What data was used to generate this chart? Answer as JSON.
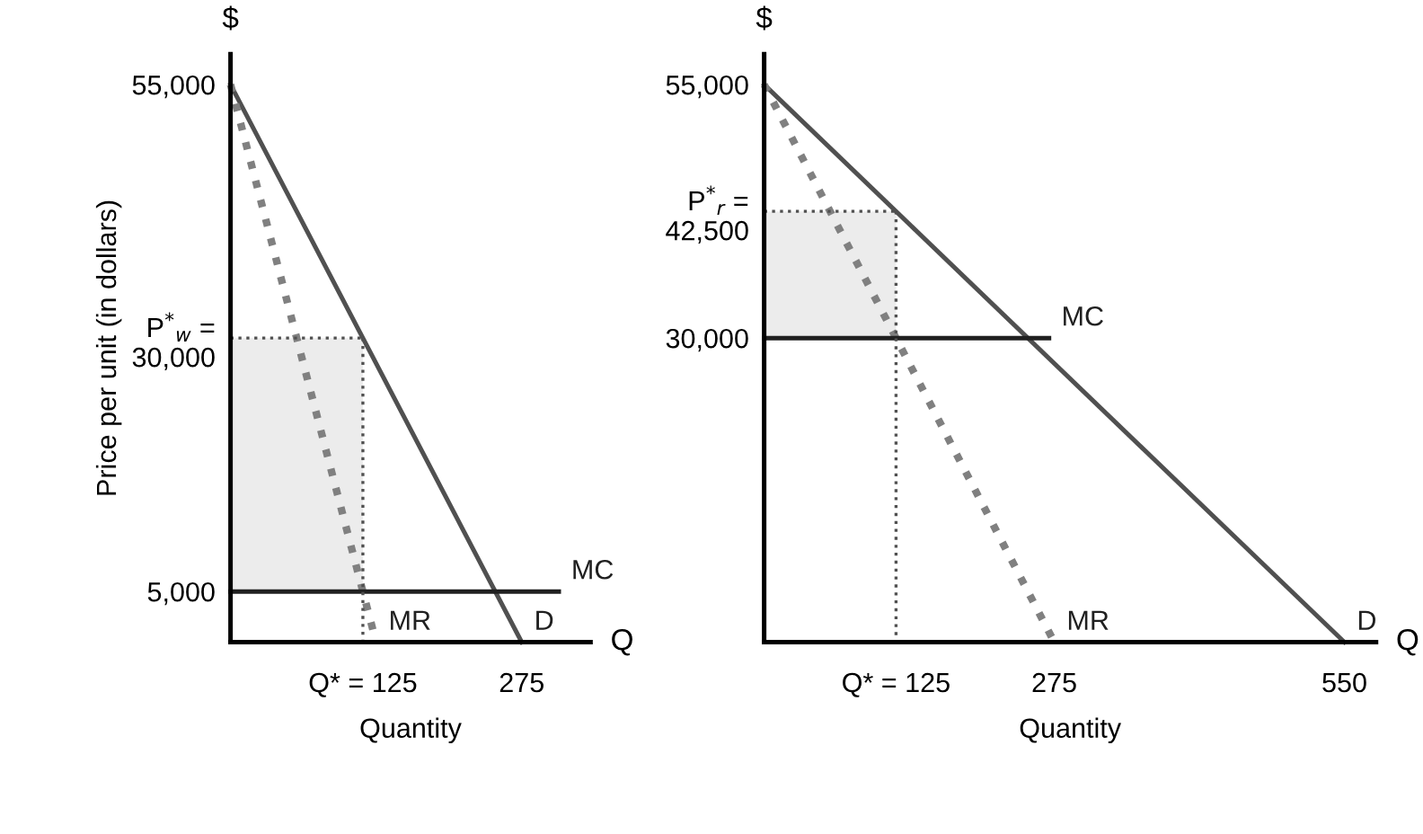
{
  "chart_data": [
    {
      "type": "line",
      "xlabel": "Quantity",
      "ylabel": "Price per unit (in dollars)",
      "xlim": [
        0,
        340
      ],
      "ylim": [
        0,
        58000
      ],
      "xticks": [
        {
          "value": 125,
          "label": "Q* = 125"
        },
        275
      ],
      "yticks": [
        {
          "value": 5000,
          "label": "5,000"
        },
        {
          "value": 30000,
          "label": "P$^{*}$$_{w}$ =\n30,000"
        },
        {
          "value": 55000,
          "label": "55,000"
        }
      ],
      "grid": false,
      "legend": false,
      "annotations": [
        "$",
        "Q"
      ],
      "series": [
        {
          "name": "D",
          "x": [
            0,
            275
          ],
          "values": [
            55000,
            0
          ],
          "color": "#505050",
          "line_style": "solid"
        },
        {
          "name": "MR",
          "x": [
            0,
            137.5
          ],
          "values": [
            55000,
            0
          ],
          "color": "#808080",
          "line_style": "dotted"
        },
        {
          "name": "MC",
          "x": [
            0,
            310
          ],
          "values": [
            5000,
            5000
          ],
          "color": "#202020",
          "line_style": "solid"
        },
        {
          "x": [
            0,
            125
          ],
          "values": [
            30000,
            30000
          ],
          "lower": [
            5000,
            5000
          ],
          "upper": [
            30000,
            30000
          ],
          "color": "#505050",
          "line_style": "dotted"
        },
        {
          "x": [
            125,
            125
          ],
          "values": [
            30000,
            0
          ],
          "color": "#505050",
          "line_style": "dotted"
        }
      ]
    },
    {
      "type": "line",
      "xlabel": "Quantity",
      "xlim": [
        0,
        580
      ],
      "ylim": [
        0,
        58000
      ],
      "xticks": [
        {
          "value": 125,
          "label": "Q* = 125"
        },
        275,
        550
      ],
      "yticks": [
        {
          "value": 30000,
          "label": "30,000"
        },
        {
          "value": 42500,
          "label": "P$^{*}$$_{r}$ =\n42,500"
        },
        {
          "value": 55000,
          "label": "55,000"
        }
      ],
      "grid": false,
      "legend": false,
      "annotations": [
        "$",
        "Q"
      ],
      "series": [
        {
          "name": "D",
          "x": [
            0,
            550
          ],
          "values": [
            55000,
            0
          ],
          "color": "#505050",
          "line_style": "solid"
        },
        {
          "name": "MR",
          "x": [
            0,
            275
          ],
          "values": [
            55000,
            0
          ],
          "color": "#808080",
          "line_style": "dotted"
        },
        {
          "name": "MC",
          "x": [
            0,
            270
          ],
          "values": [
            30000,
            30000
          ],
          "color": "#202020",
          "line_style": "solid"
        },
        {
          "x": [
            0,
            125
          ],
          "values": [
            42500,
            42500
          ],
          "lower": [
            30000,
            30000
          ],
          "upper": [
            42500,
            42500
          ],
          "color": "#505050",
          "line_style": "dotted"
        },
        {
          "x": [
            125,
            125
          ],
          "values": [
            42500,
            0
          ],
          "color": "#505050",
          "line_style": "dotted"
        }
      ]
    }
  ]
}
